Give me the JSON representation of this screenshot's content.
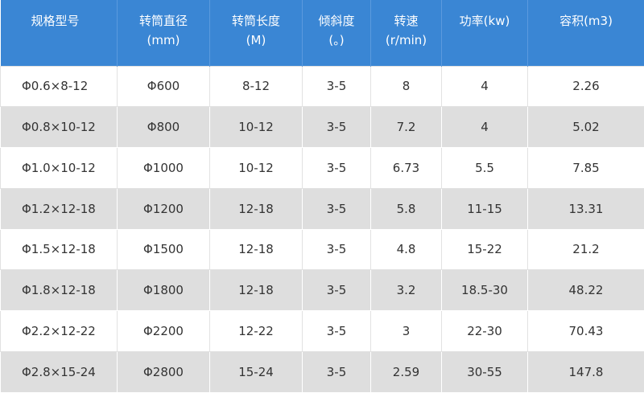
{
  "table": {
    "headers": [
      [
        "规格型号"
      ],
      [
        "转筒直径",
        "(mm)"
      ],
      [
        "转筒长度",
        "(M)"
      ],
      [
        "倾斜度",
        "(。)"
      ],
      [
        "转速",
        "(r/min)"
      ],
      [
        "功率(kw)"
      ],
      [
        "容积(m3)"
      ]
    ],
    "rows": [
      [
        "Φ0.6×8-12",
        "Φ600",
        "8-12",
        "3-5",
        "8",
        "4",
        "2.26"
      ],
      [
        "Φ0.8×10-12",
        "Φ800",
        "10-12",
        "3-5",
        "7.2",
        "4",
        "5.02"
      ],
      [
        "Φ1.0×10-12",
        "Φ1000",
        "10-12",
        "3-5",
        "6.73",
        "5.5",
        "7.85"
      ],
      [
        "Φ1.2×12-18",
        "Φ1200",
        "12-18",
        "3-5",
        "5.8",
        "11-15",
        "13.31"
      ],
      [
        "Φ1.5×12-18",
        "Φ1500",
        "12-18",
        "3-5",
        "4.8",
        "15-22",
        "21.2"
      ],
      [
        "Φ1.8×12-18",
        "Φ1800",
        "12-18",
        "3-5",
        "3.2",
        "18.5-30",
        "48.22"
      ],
      [
        "Φ2.2×12-22",
        "Φ2200",
        "12-22",
        "3-5",
        "3",
        "22-30",
        "70.43"
      ],
      [
        "Φ2.8×15-24",
        "Φ2800",
        "15-24",
        "3-5",
        "2.59",
        "30-55",
        "147.8"
      ]
    ]
  }
}
